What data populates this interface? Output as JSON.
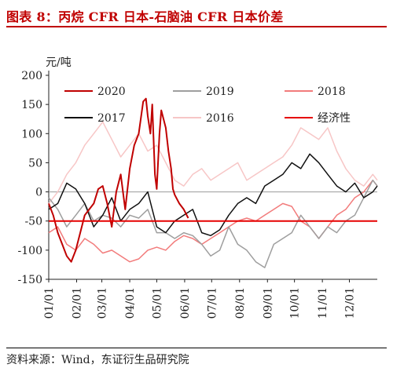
{
  "figure": {
    "title": "图表 8：丙烷 CFR 日本-石脑油 CFR 日本价差",
    "source": "资料来源：Wind，东证衍生品研究院"
  },
  "colors": {
    "title_red": "#c00000",
    "s2020": "#c00000",
    "s2019": "#9e9e9e",
    "s2018": "#f27b7b",
    "s2017": "#111111",
    "s2016": "#f7c6c6",
    "econ": "#e60000"
  },
  "chart_data": {
    "type": "line",
    "ylabel": "元/吨",
    "ylim": [
      -150,
      200
    ],
    "yticks": [
      -150,
      -100,
      -50,
      0,
      50,
      100,
      150,
      200
    ],
    "xticks": [
      "01/01",
      "02/01",
      "03/01",
      "04/01",
      "05/01",
      "06/01",
      "07/01",
      "08/01",
      "09/01",
      "10/01",
      "11/01",
      "12/01"
    ],
    "xlim": [
      0,
      365
    ],
    "grid": false,
    "legend_position": "top",
    "series": [
      {
        "name": "2020",
        "key": "s2020",
        "width": 2,
        "x": [
          0,
          5,
          10,
          15,
          20,
          25,
          30,
          35,
          40,
          45,
          50,
          55,
          60,
          65,
          70,
          75,
          80,
          85,
          90,
          95,
          100,
          105,
          108,
          110,
          113,
          115,
          118,
          120,
          123,
          125,
          130,
          133,
          136,
          138,
          140,
          145,
          150,
          155
        ],
        "y": [
          -20,
          -40,
          -70,
          -90,
          -110,
          -120,
          -100,
          -70,
          -40,
          -30,
          -20,
          5,
          10,
          -20,
          -60,
          0,
          30,
          -30,
          40,
          80,
          100,
          155,
          160,
          130,
          100,
          150,
          30,
          5,
          100,
          140,
          110,
          70,
          40,
          5,
          -5,
          -20,
          -30,
          -45
        ]
      },
      {
        "name": "2019",
        "key": "s2019",
        "width": 1.5,
        "x": [
          0,
          10,
          20,
          30,
          40,
          50,
          60,
          70,
          80,
          90,
          100,
          110,
          120,
          130,
          140,
          150,
          160,
          170,
          180,
          190,
          200,
          210,
          220,
          230,
          240,
          250,
          260,
          270,
          280,
          290,
          300,
          310,
          320,
          330,
          340,
          350,
          360,
          365
        ],
        "y": [
          -10,
          -30,
          -60,
          -40,
          -20,
          -50,
          -40,
          -45,
          -60,
          -40,
          -45,
          -30,
          -70,
          -70,
          -80,
          -70,
          -75,
          -90,
          -110,
          -100,
          -60,
          -90,
          -100,
          -120,
          -130,
          -90,
          -80,
          -70,
          -40,
          -60,
          -80,
          -60,
          -70,
          -50,
          -40,
          -10,
          20,
          10
        ]
      },
      {
        "name": "2018",
        "key": "s2018",
        "width": 1.5,
        "x": [
          0,
          10,
          20,
          30,
          40,
          50,
          60,
          70,
          80,
          90,
          100,
          110,
          120,
          130,
          140,
          150,
          160,
          170,
          180,
          190,
          200,
          210,
          220,
          230,
          240,
          250,
          260,
          270,
          280,
          290,
          300,
          310,
          320,
          330,
          340,
          350,
          360,
          365
        ],
        "y": [
          -70,
          -60,
          -90,
          -100,
          -80,
          -90,
          -105,
          -100,
          -110,
          -120,
          -115,
          -100,
          -95,
          -100,
          -85,
          -75,
          -80,
          -90,
          -80,
          -70,
          -60,
          -50,
          -45,
          -50,
          -40,
          -30,
          -20,
          -25,
          -50,
          -60,
          -80,
          -60,
          -40,
          -30,
          -10,
          0,
          20,
          10
        ]
      },
      {
        "name": "2017",
        "key": "s2017",
        "width": 1.5,
        "x": [
          0,
          10,
          20,
          30,
          40,
          50,
          60,
          70,
          80,
          90,
          100,
          110,
          120,
          130,
          140,
          150,
          160,
          170,
          180,
          190,
          200,
          210,
          220,
          230,
          240,
          250,
          260,
          270,
          280,
          290,
          300,
          310,
          320,
          330,
          340,
          350,
          360,
          365
        ],
        "y": [
          -30,
          -20,
          15,
          5,
          -20,
          -60,
          -40,
          -10,
          -50,
          -30,
          -20,
          0,
          -60,
          -70,
          -50,
          -40,
          -30,
          -70,
          -75,
          -65,
          -40,
          -20,
          -10,
          -20,
          10,
          20,
          30,
          50,
          40,
          65,
          50,
          30,
          10,
          0,
          15,
          -10,
          0,
          10
        ]
      },
      {
        "name": "2016",
        "key": "s2016",
        "width": 1.5,
        "x": [
          0,
          10,
          20,
          30,
          40,
          50,
          60,
          70,
          80,
          90,
          100,
          110,
          120,
          130,
          140,
          150,
          160,
          170,
          180,
          190,
          200,
          210,
          220,
          230,
          240,
          250,
          260,
          270,
          280,
          290,
          300,
          310,
          320,
          330,
          340,
          350,
          360,
          365
        ],
        "y": [
          -20,
          0,
          30,
          50,
          80,
          100,
          120,
          90,
          60,
          80,
          100,
          70,
          80,
          50,
          20,
          10,
          30,
          40,
          20,
          30,
          40,
          50,
          20,
          30,
          40,
          50,
          60,
          80,
          110,
          100,
          90,
          110,
          70,
          40,
          20,
          10,
          30,
          20
        ]
      },
      {
        "name": "经济性",
        "key": "econ",
        "width": 2,
        "x": [
          0,
          365
        ],
        "y": [
          -50,
          -50
        ]
      }
    ]
  }
}
